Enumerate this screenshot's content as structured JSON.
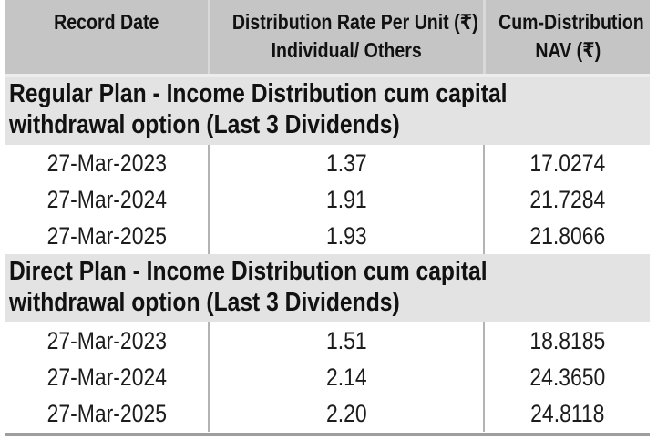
{
  "table": {
    "header": {
      "col1_line1": "Record Date",
      "col2_line1": "Distribution Rate Per Unit (₹)",
      "col2_line2": "Individual/ Others",
      "col3_line1": "Cum-Distribution",
      "col3_line2": "NAV (₹)"
    },
    "sections": [
      {
        "title_full": "Regular Plan - Income Distribution cum capital withdrawal option (Last 3 Dividends)",
        "title_lines": [
          "Regular Plan - Income Distribution cum capital",
          "withdrawal option (Last 3 Dividends)"
        ],
        "rows": [
          [
            "27-Mar-2023",
            "1.37",
            "17.0274"
          ],
          [
            "27-Mar-2024",
            "1.91",
            "21.7284"
          ],
          [
            "27-Mar-2025",
            "1.93",
            "21.8066"
          ]
        ]
      },
      {
        "title_full": "Direct Plan - Income Distribution cum capital withdrawal option (Last 3 Dividends)",
        "title_lines": [
          "Direct Plan - Income Distribution cum capital",
          "withdrawal option (Last 3 Dividends)"
        ],
        "rows": [
          [
            "27-Mar-2023",
            "1.51",
            "18.8185"
          ],
          [
            "27-Mar-2024",
            "2.14",
            "24.3650"
          ],
          [
            "27-Mar-2025",
            "2.20",
            "24.8118"
          ]
        ]
      }
    ],
    "colors": {
      "header_bg": "#c5c5c5",
      "section_bg": "#e3e3e3",
      "data_divider": "#b3b3b3",
      "header_divider": "#d9d9d9",
      "header_separator": "#ededed",
      "bottom_border": "#9e9e9e",
      "heading_text": "#111111",
      "data_text": "#1c1c1c"
    }
  }
}
